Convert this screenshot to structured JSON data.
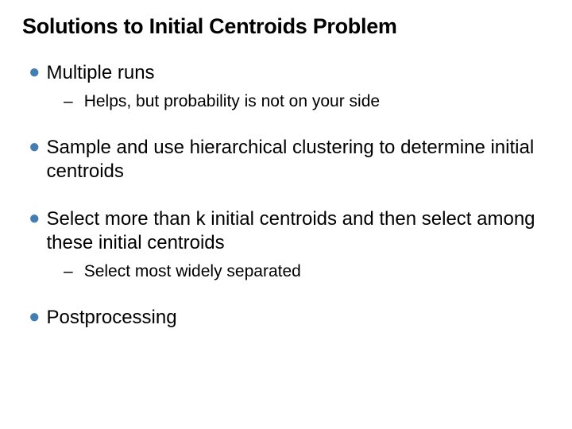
{
  "slide": {
    "title": "Solutions to Initial Centroids Problem",
    "title_color": "#000000",
    "title_fontsize": 27,
    "bullet_marker_color": "#447db1",
    "body_fontsize": 24,
    "sub_fontsize": 21,
    "background_color": "#ffffff",
    "bullets": {
      "b0": {
        "text": "Multiple runs"
      },
      "b0_sub0": {
        "text": "Helps, but probability is not on your side"
      },
      "b1": {
        "text": "Sample and use hierarchical clustering to determine initial centroids"
      },
      "b2": {
        "text": "Select more than k initial centroids and then select among these initial centroids"
      },
      "b2_sub0": {
        "text": "Select most widely separated"
      },
      "b3": {
        "text": "Postprocessing"
      }
    }
  }
}
